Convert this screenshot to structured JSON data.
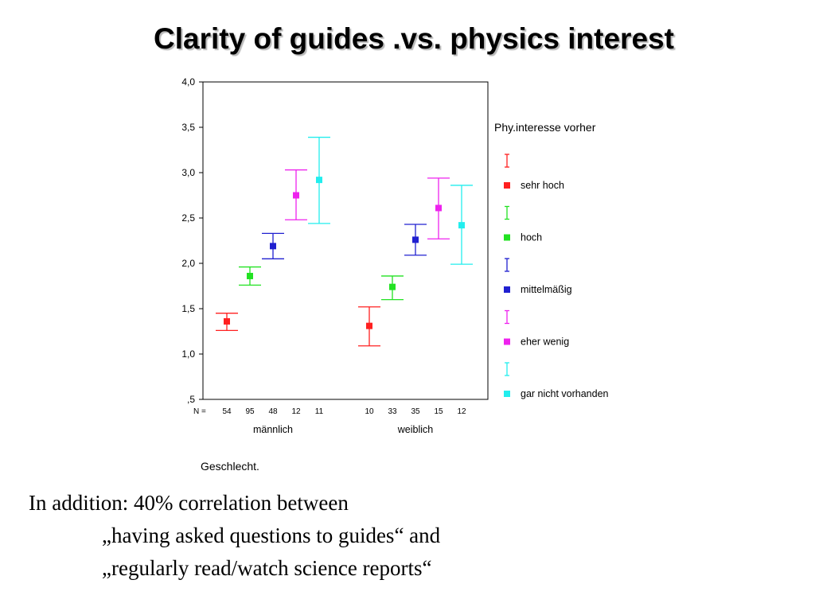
{
  "slide": {
    "title": "Clarity of guides .vs.  physics interest",
    "notes": [
      "In addition: 40% correlation between",
      "„having asked questions to guides“ and",
      "„regularly read/watch  science reports“"
    ]
  },
  "chart_data": {
    "type": "errorbar",
    "title": "",
    "xlabel": "Geschlecht.",
    "ylabel": "",
    "ylim": [
      0.5,
      4.0
    ],
    "yticks": [
      0.5,
      1.0,
      1.5,
      2.0,
      2.5,
      3.0,
      3.5,
      4.0
    ],
    "ytick_labels": [
      ",5",
      "1,0",
      "1,5",
      "2,0",
      "2,5",
      "3,0",
      "3,5",
      "4,0"
    ],
    "grid": false,
    "n_label": "N =",
    "legend": {
      "title": "Phy.interesse vorher",
      "placement": "right"
    },
    "categories": [
      "männlich",
      "weiblich"
    ],
    "series": [
      {
        "name": "sehr hoch",
        "color": "#ff2020",
        "mean": [
          1.36,
          1.31
        ],
        "low": [
          1.26,
          1.09
        ],
        "high": [
          1.45,
          1.52
        ],
        "n": [
          "54",
          "10"
        ]
      },
      {
        "name": "hoch",
        "color": "#22e222",
        "mean": [
          1.86,
          1.74
        ],
        "low": [
          1.76,
          1.6
        ],
        "high": [
          1.96,
          1.86
        ],
        "n": [
          "95",
          "33"
        ]
      },
      {
        "name": "mittelmäßig",
        "color": "#2020d0",
        "mean": [
          2.19,
          2.26
        ],
        "low": [
          2.05,
          2.09
        ],
        "high": [
          2.33,
          2.43
        ],
        "n": [
          "48",
          "35"
        ]
      },
      {
        "name": "eher wenig",
        "color": "#ee22ee",
        "mean": [
          2.75,
          2.61
        ],
        "low": [
          2.48,
          2.27
        ],
        "high": [
          3.03,
          2.94
        ],
        "n": [
          "12",
          "15"
        ]
      },
      {
        "name": "gar nicht vorhanden",
        "color": "#22eeee",
        "mean": [
          2.92,
          2.42
        ],
        "low": [
          2.44,
          1.99
        ],
        "high": [
          3.39,
          2.86
        ],
        "n": [
          "11",
          "12"
        ]
      }
    ]
  }
}
